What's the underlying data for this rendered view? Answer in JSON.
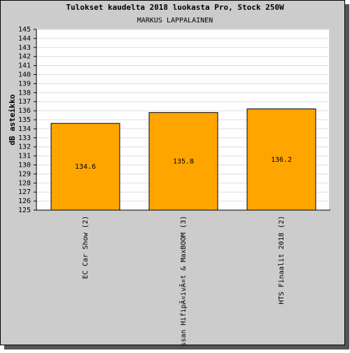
{
  "chart_data": {
    "type": "bar",
    "title": "Tulokset kaudelta 2018 luokasta Pro, Stock 250W",
    "subtitle": "MARKUS LAPPALAINEN",
    "y_label": "dB asteikko",
    "categories": [
      "EC Car Show (2)",
      "ssan HifipÃ¤ivÃ¤t & MaxBOOM (3)",
      "HTS Finaalit 2018 (2)"
    ],
    "values": [
      134.6,
      135.8,
      136.2
    ],
    "color": "#ffa500",
    "ylim": [
      125,
      145
    ],
    "yticks": [
      125,
      126,
      127,
      128,
      129,
      130,
      131,
      132,
      133,
      134,
      135,
      136,
      137,
      138,
      139,
      140,
      141,
      142,
      143,
      144,
      145
    ],
    "grid": true
  }
}
